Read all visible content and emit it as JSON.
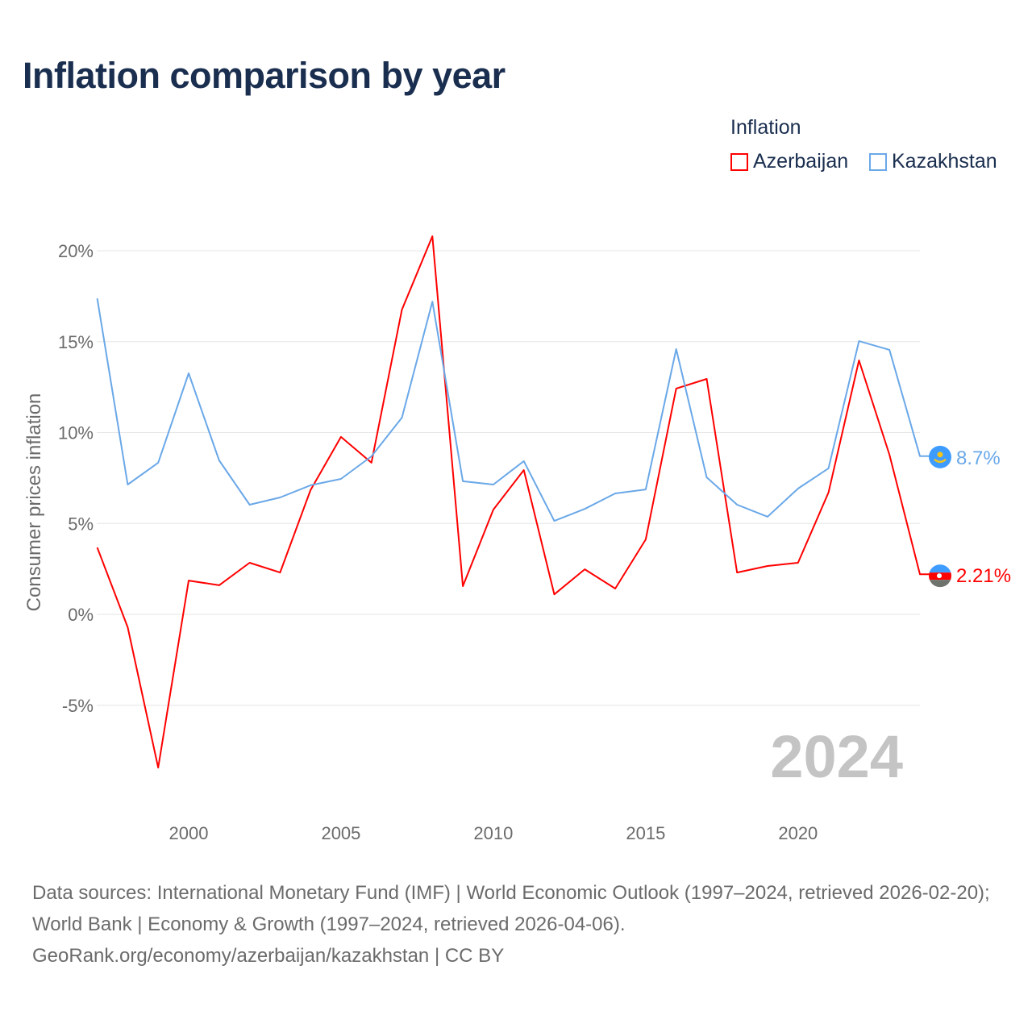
{
  "title": "Inflation comparison by year",
  "legend": {
    "title": "Inflation",
    "items": [
      {
        "label": "Azerbaijan",
        "color": "#ff0000"
      },
      {
        "label": "Kazakhstan",
        "color": "#6aa8e8"
      }
    ]
  },
  "watermark_year": "2024",
  "footer": {
    "line1": "Data sources: International Monetary Fund (IMF) | World Economic Outlook (1997–2024, retrieved 2026-02-20); World Bank | Economy & Growth (1997–2024, retrieved 2026-04-06).",
    "line2": "GeoRank.org/economy/azerbaijan/kazakhstan | CC BY"
  },
  "chart_data": {
    "type": "line",
    "title": "Inflation comparison by year",
    "xlabel": "",
    "ylabel": "Consumer prices inflation",
    "xlim": [
      1997,
      2024
    ],
    "ylim": [
      -10,
      21
    ],
    "x_ticks": [
      2000,
      2005,
      2010,
      2015,
      2020
    ],
    "y_ticks": [
      -5,
      0,
      5,
      10,
      15,
      20
    ],
    "y_tick_labels": [
      "-5%",
      "0%",
      "5%",
      "10%",
      "15%",
      "20%"
    ],
    "grid": true,
    "legend_position": "top-right",
    "x": [
      1997,
      1998,
      1999,
      2000,
      2001,
      2002,
      2003,
      2004,
      2005,
      2006,
      2007,
      2008,
      2009,
      2010,
      2011,
      2012,
      2013,
      2014,
      2015,
      2016,
      2017,
      2018,
      2019,
      2020,
      2021,
      2022,
      2023,
      2024
    ],
    "series": [
      {
        "name": "Azerbaijan",
        "color": "#ff0000",
        "end_label": "2.21%",
        "values": [
          3.68,
          -0.71,
          -8.43,
          1.86,
          1.6,
          2.84,
          2.3,
          6.83,
          9.76,
          8.34,
          16.76,
          20.8,
          1.55,
          5.76,
          7.94,
          1.1,
          2.48,
          1.42,
          4.12,
          12.42,
          12.95,
          2.3,
          2.66,
          2.84,
          6.7,
          13.97,
          8.78,
          2.21
        ]
      },
      {
        "name": "Kazakhstan",
        "color": "#6aa8e8",
        "end_label": "8.7%",
        "values": [
          17.38,
          7.14,
          8.34,
          13.26,
          8.47,
          6.03,
          6.43,
          7.1,
          7.45,
          8.69,
          10.82,
          17.2,
          7.32,
          7.14,
          8.43,
          5.14,
          5.8,
          6.65,
          6.87,
          14.59,
          7.54,
          6.03,
          5.37,
          6.92,
          8.03,
          15.03,
          14.55,
          8.7
        ]
      }
    ]
  }
}
